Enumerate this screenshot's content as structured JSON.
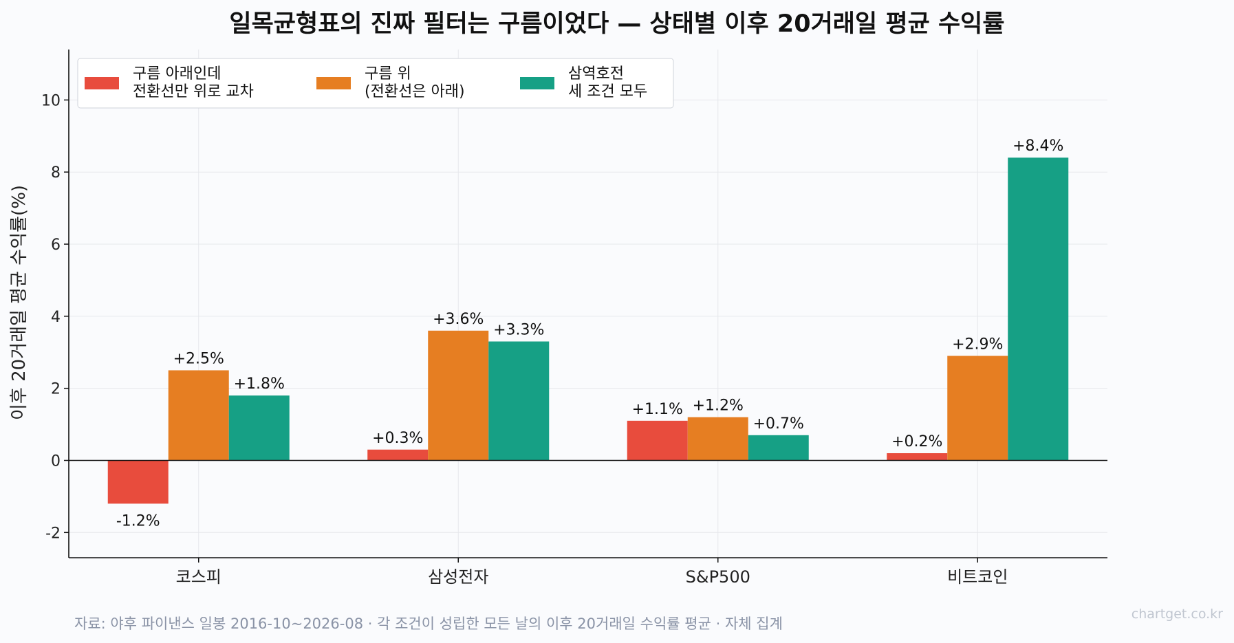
{
  "colors": {
    "series_below_cloud": "#e84c3d",
    "series_above_cloud": "#e67e22",
    "series_all_three": "#16a085",
    "grid": "#e6e8ec",
    "axis": "#111111"
  },
  "chart_data": {
    "type": "bar",
    "title": "일목균형표의 진짜 필터는 구름이었다 — 상태별 이후 20거래일 평균 수익률",
    "xlabel": "",
    "ylabel": "이후 20거래일 평균 수익률(%)",
    "ylim": [
      -2.7,
      11.4
    ],
    "yticks": [
      -2,
      0,
      2,
      4,
      6,
      8,
      10
    ],
    "ytick_labels": [
      "-2",
      "0",
      "2",
      "4",
      "6",
      "8",
      "10"
    ],
    "grid": true,
    "legend_position": "top-left",
    "categories": [
      "코스피",
      "삼성전자",
      "S&P500",
      "비트코인"
    ],
    "series": [
      {
        "name_lines": [
          "구름 아래인데",
          "전환선만 위로 교차"
        ],
        "color_key": "series_below_cloud",
        "values": [
          -1.2,
          0.3,
          1.1,
          0.2
        ],
        "labels": [
          "-1.2%",
          "+0.3%",
          "+1.1%",
          "+0.2%"
        ]
      },
      {
        "name_lines": [
          "구름 위",
          "(전환선은 아래)"
        ],
        "color_key": "series_above_cloud",
        "values": [
          2.5,
          3.6,
          1.2,
          2.9
        ],
        "labels": [
          "+2.5%",
          "+3.6%",
          "+1.2%",
          "+2.9%"
        ]
      },
      {
        "name_lines": [
          "삼역호전",
          "세 조건 모두"
        ],
        "color_key": "series_all_three",
        "values": [
          1.8,
          3.3,
          0.7,
          8.4
        ],
        "labels": [
          "+1.8%",
          "+3.3%",
          "+0.7%",
          "+8.4%"
        ]
      }
    ]
  },
  "footer": {
    "source": "자료: 야후 파이낸스 일봉 2016-10~2026-08 · 각 조건이 성립한 모든 날의 이후 20거래일 수익률 평균 · 자체 집계",
    "watermark": "chartget.co.kr"
  }
}
